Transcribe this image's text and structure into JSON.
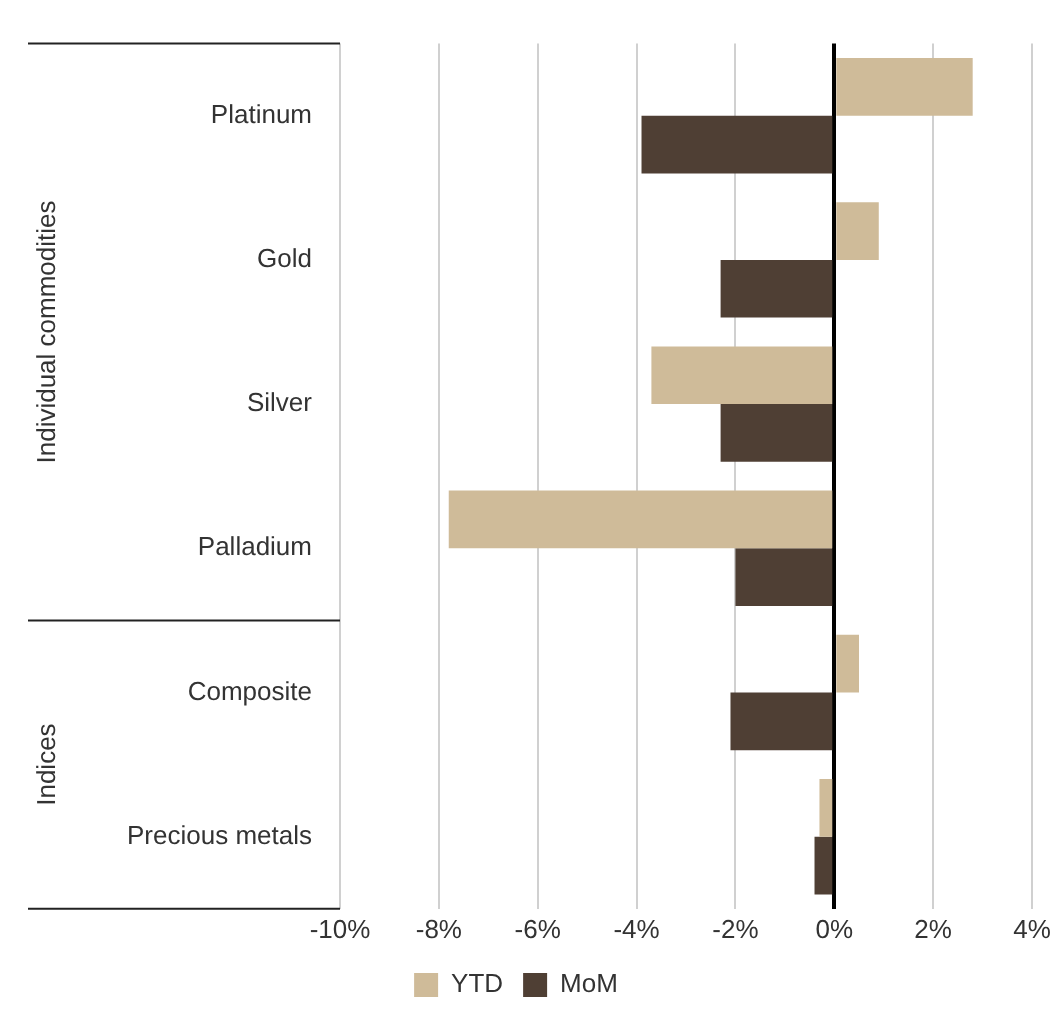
{
  "chart_data": {
    "type": "bar",
    "orientation": "horizontal",
    "categories": [
      "Platinum",
      "Gold",
      "Silver",
      "Palladium",
      "Composite",
      "Precious metals"
    ],
    "series": [
      {
        "name": "YTD",
        "color": "#cfbb99",
        "values": [
          2.8,
          0.9,
          -3.7,
          -7.8,
          0.5,
          -0.3
        ]
      },
      {
        "name": "MoM",
        "color": "#4f3f34",
        "values": [
          -3.9,
          -2.3,
          -2.3,
          -2.0,
          -2.1,
          -0.4
        ]
      }
    ],
    "xlim": [
      -10,
      4
    ],
    "xticks": [
      {
        "value": -10,
        "label": "-10%"
      },
      {
        "value": -8,
        "label": "-8%"
      },
      {
        "value": -6,
        "label": "-6%"
      },
      {
        "value": -4,
        "label": "-4%"
      },
      {
        "value": -2,
        "label": "-2%"
      },
      {
        "value": 0,
        "label": "0%"
      },
      {
        "value": 2,
        "label": "2%"
      },
      {
        "value": 4,
        "label": "4%"
      }
    ],
    "grid": "x",
    "legend": "bottom",
    "annotations": [
      "Individual commodities",
      "Indices"
    ]
  }
}
